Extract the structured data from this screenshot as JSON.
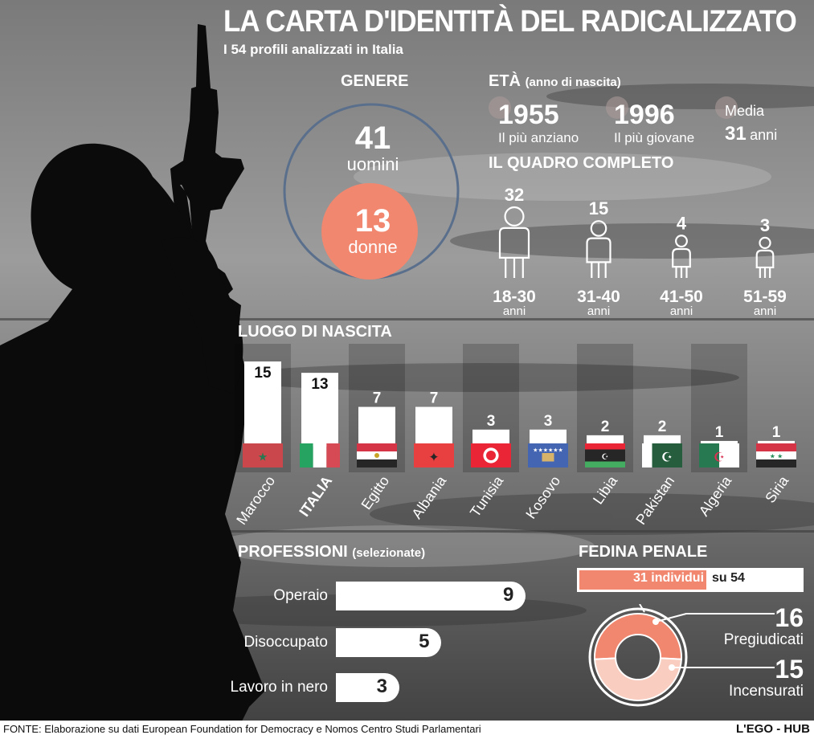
{
  "title": "LA CARTA D'IDENTITÀ DEL RADICALIZZATO",
  "subtitle": "I 54 profili analizzati in Italia",
  "gender": {
    "heading": "GENERE",
    "men": {
      "value": "41",
      "label": "uomini"
    },
    "women": {
      "value": "13",
      "label": "donne"
    },
    "colors": {
      "men_ring": "#5a6f8c",
      "women": "#f1876f"
    }
  },
  "age": {
    "heading": "ETÀ",
    "heading_note": "(anno di nascita)",
    "oldest": {
      "value": "1955",
      "label": "Il più anziano"
    },
    "youngest": {
      "value": "1996",
      "label": "Il più giovane"
    },
    "average": {
      "label": "Media",
      "value": "31",
      "unit": "anni"
    }
  },
  "age_groups": {
    "heading": "IL QUADRO COMPLETO",
    "icon": "person-icon",
    "unit": "anni",
    "groups": [
      {
        "range": "18-30",
        "value": 32
      },
      {
        "range": "31-40",
        "value": 15
      },
      {
        "range": "41-50",
        "value": 4
      },
      {
        "range": "51-59",
        "value": 3
      }
    ]
  },
  "chart_data": [
    {
      "type": "bar",
      "title": "LUOGO DI NASCITA",
      "categories": [
        "Marocco",
        "ITALIA",
        "Egitto",
        "Albania",
        "Tunisia",
        "Kosovo",
        "Libia",
        "Pakistan",
        "Algeria",
        "Siria"
      ],
      "values": [
        15,
        13,
        7,
        7,
        3,
        3,
        2,
        2,
        1,
        1
      ],
      "highlight": "ITALIA",
      "icons": [
        "flag-morocco-icon",
        "flag-italy-icon",
        "flag-egypt-icon",
        "flag-albania-icon",
        "flag-tunisia-icon",
        "flag-kosovo-icon",
        "flag-libya-icon",
        "flag-pakistan-icon",
        "flag-algeria-icon",
        "flag-syria-icon"
      ],
      "ylim": [
        0,
        15
      ]
    },
    {
      "type": "bar",
      "orientation": "horizontal",
      "title": "PROFESSIONI",
      "categories": [
        "Operaio",
        "Disoccupato",
        "Lavoro in nero"
      ],
      "values": [
        9,
        5,
        3
      ]
    },
    {
      "type": "pie",
      "title": "FEDINA PENALE",
      "categories": [
        "Pregiudicati",
        "Incensurati"
      ],
      "values": [
        16,
        15
      ],
      "colors": [
        "#f1876f",
        "#f9cdbf"
      ]
    }
  ],
  "professions": {
    "heading_note": "(selezionate)"
  },
  "criminal_record": {
    "heading": "FEDINA PENALE",
    "count": 31,
    "total": 54,
    "count_label": "31 individui",
    "total_label": "su 54",
    "prior": {
      "value": "16",
      "label": "Pregiudicati"
    },
    "clean": {
      "value": "15",
      "label": "Incensurati"
    }
  },
  "footer": {
    "source": "FONTE: Elaborazione su dati European Foundation for Democracy e Nomos Centro Studi Parlamentari",
    "brand": "L'EGO - HUB"
  }
}
